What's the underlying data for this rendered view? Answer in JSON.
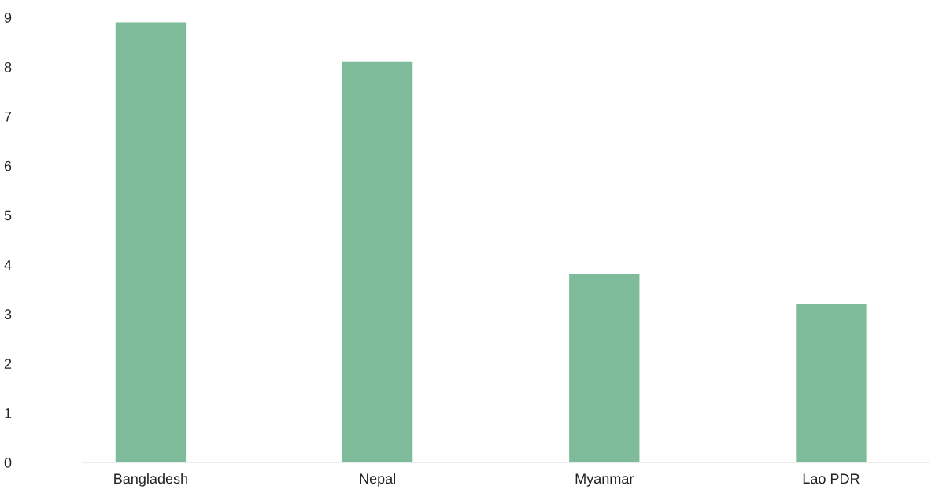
{
  "chart_data": {
    "type": "bar",
    "categories": [
      "Bangladesh",
      "Nepal",
      "Myanmar",
      "Lao PDR"
    ],
    "values": [
      8.9,
      8.1,
      3.8,
      3.2
    ],
    "color": "#7dbb9b",
    "ylim": [
      0,
      9
    ],
    "yticks": [
      0,
      1,
      2,
      3,
      4,
      5,
      6,
      7,
      8,
      9
    ],
    "grid": false
  }
}
